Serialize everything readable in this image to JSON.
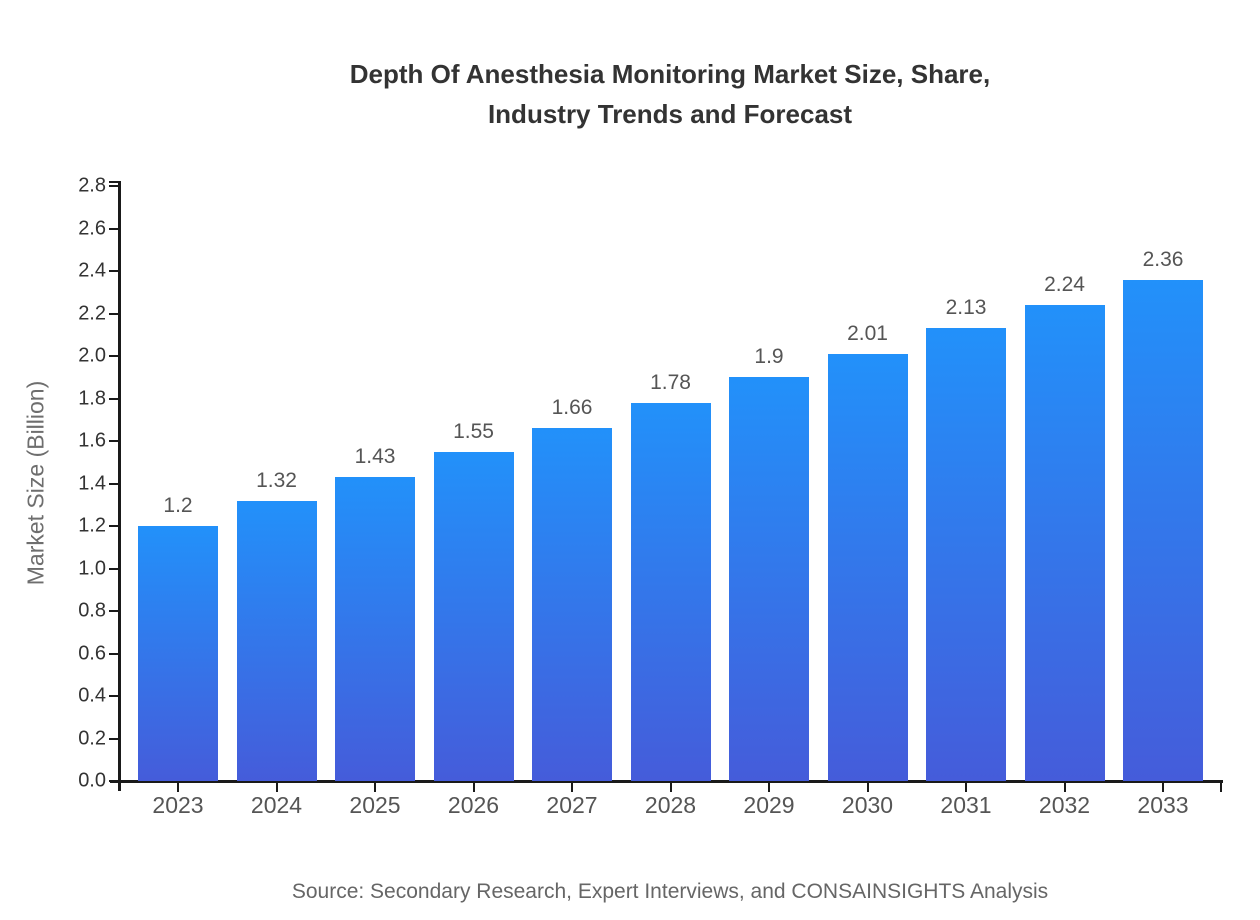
{
  "page": {
    "background": "#ffffff"
  },
  "chart_data": {
    "type": "bar",
    "title": "Depth Of Anesthesia Monitoring Market Size, Share,\nIndustry Trends and Forecast",
    "xlabel": "",
    "ylabel": "Market Size (Billion)",
    "categories": [
      "2023",
      "2024",
      "2025",
      "2026",
      "2027",
      "2028",
      "2029",
      "2030",
      "2031",
      "2032",
      "2033"
    ],
    "values": [
      1.2,
      1.32,
      1.43,
      1.55,
      1.66,
      1.78,
      1.9,
      2.01,
      2.13,
      2.24,
      2.36
    ],
    "value_labels": [
      "1.2",
      "1.32",
      "1.43",
      "1.55",
      "1.66",
      "1.78",
      "1.9",
      "2.01",
      "2.13",
      "2.24",
      "2.36"
    ],
    "ylim": [
      0,
      2.8
    ],
    "ytick_step": 0.2,
    "ytick_labels": [
      "0.0",
      "0.2",
      "0.4",
      "0.6",
      "0.8",
      "1.0",
      "1.2",
      "1.4",
      "1.6",
      "1.8",
      "2.0",
      "2.2",
      "2.4",
      "2.6",
      "2.8"
    ],
    "grid": false,
    "legend": "none",
    "source_note": "Source: Secondary Research, Expert Interviews, and CONSAINSIGHTS Analysis",
    "colors": {
      "bar_gradient_top": "#2291fa",
      "bar_gradient_bottom": "#455cda",
      "axis": "#1a1a1a",
      "title_text": "#333333",
      "ytick_text": "#333333",
      "xtick_text": "#555555",
      "value_label_text": "#555555",
      "ylabel_text": "#6e6e6e",
      "source_text": "#666666"
    }
  }
}
